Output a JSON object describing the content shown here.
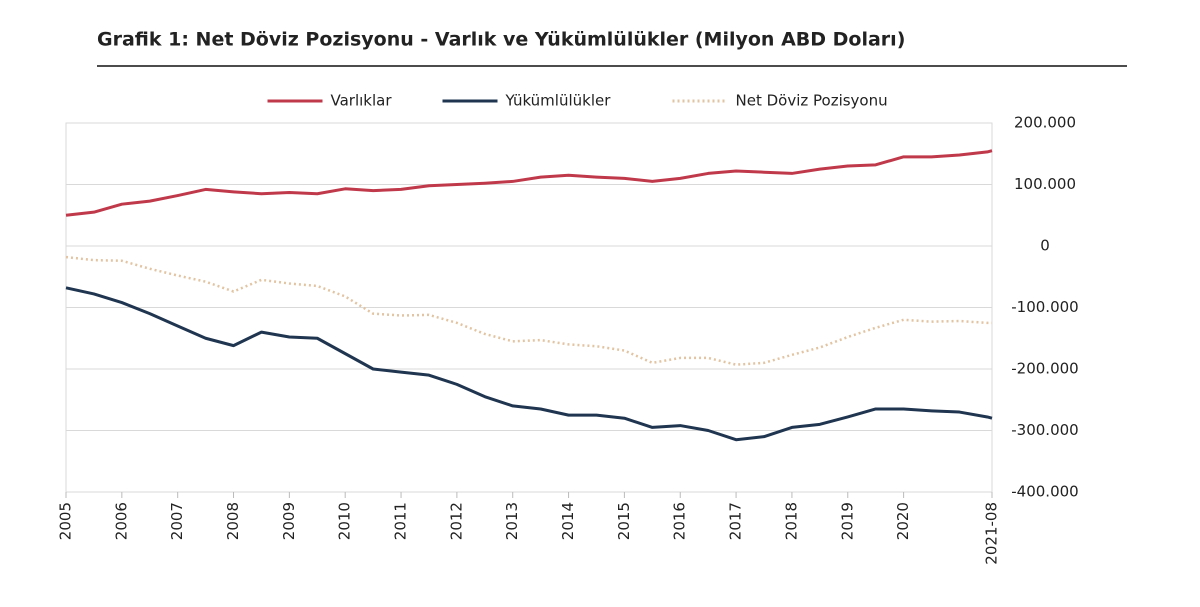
{
  "chart_data": {
    "type": "line",
    "title": "Grafik 1:  Net Döviz Pozisyonu - Varlık ve Yükümlülükler (Milyon ABD Doları)",
    "x": [
      2005,
      2005.5,
      2006,
      2006.5,
      2007,
      2007.5,
      2008,
      2008.5,
      2009,
      2009.5,
      2010,
      2010.5,
      2011,
      2011.5,
      2012,
      2012.5,
      2013,
      2013.5,
      2014,
      2014.5,
      2015,
      2015.5,
      2016,
      2016.5,
      2017,
      2017.5,
      2018,
      2018.5,
      2019,
      2019.5,
      2020,
      2020.5,
      2021,
      2021.5,
      2021.583
    ],
    "series": [
      {
        "name": "Varlıklar",
        "color": "#c0394b",
        "style": "solid",
        "values": [
          50000,
          55000,
          68000,
          73000,
          82000,
          92000,
          88000,
          85000,
          87000,
          85000,
          93000,
          90000,
          92000,
          98000,
          100000,
          102000,
          105000,
          112000,
          115000,
          112000,
          110000,
          105000,
          110000,
          118000,
          122000,
          120000,
          118000,
          125000,
          130000,
          132000,
          145000,
          145000,
          148000,
          153000,
          155000
        ]
      },
      {
        "name": "Yükümlülükler",
        "color": "#1f3550",
        "style": "solid",
        "values": [
          -68000,
          -78000,
          -92000,
          -110000,
          -130000,
          -150000,
          -162000,
          -140000,
          -148000,
          -150000,
          -175000,
          -200000,
          -205000,
          -210000,
          -225000,
          -245000,
          -260000,
          -265000,
          -275000,
          -275000,
          -280000,
          -295000,
          -292000,
          -300000,
          -315000,
          -310000,
          -295000,
          -290000,
          -278000,
          -265000,
          -265000,
          -268000,
          -270000,
          -278000,
          -280000
        ]
      },
      {
        "name": "Net Döviz Pozisyonu",
        "color": "#e2c4a2",
        "style": "dotted",
        "values": [
          -18000,
          -23000,
          -24000,
          -37000,
          -48000,
          -58000,
          -74000,
          -55000,
          -61000,
          -65000,
          -82000,
          -110000,
          -113000,
          -112000,
          -125000,
          -143000,
          -155000,
          -153000,
          -160000,
          -163000,
          -170000,
          -190000,
          -182000,
          -182000,
          -193000,
          -190000,
          -177000,
          -165000,
          -148000,
          -133000,
          -120000,
          -123000,
          -122000,
          -125000,
          -125000
        ]
      }
    ],
    "xlim": [
      2005,
      2021.583
    ],
    "xticks": [
      2005,
      2006,
      2007,
      2008,
      2009,
      2010,
      2011,
      2012,
      2013,
      2014,
      2015,
      2016,
      2017,
      2018,
      2019,
      2020,
      {
        "value": 2021.583,
        "label": "2021-08"
      }
    ],
    "ylim": [
      -400000,
      200000
    ],
    "yticks": [
      {
        "value": 200000,
        "label": "200.000"
      },
      {
        "value": 100000,
        "label": "100.000"
      },
      0,
      {
        "value": -100000,
        "label": "-100.000"
      },
      {
        "value": -200000,
        "label": "-200.000"
      },
      {
        "value": -300000,
        "label": "-300.000"
      },
      {
        "value": -400000,
        "label": "-400.000"
      }
    ],
    "legend": "top"
  }
}
